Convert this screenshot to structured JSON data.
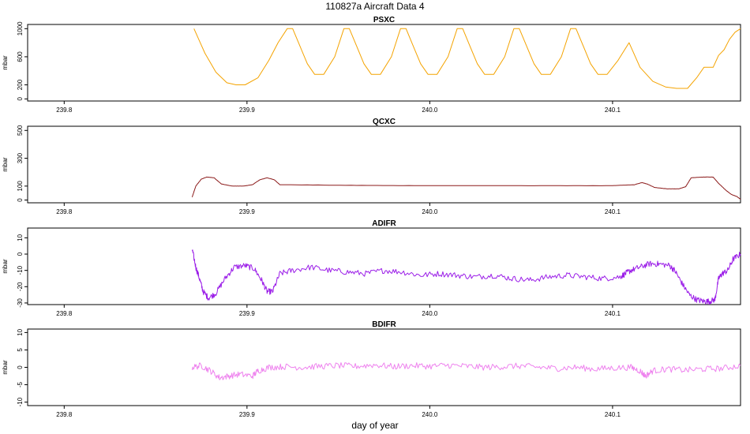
{
  "title": "110827a   Aircraft Data 4",
  "xlabel": "day of year",
  "chart_data": [
    {
      "type": "line",
      "title": "PSXC",
      "ylabel": "mbar",
      "color": "#f4a300",
      "xlim": [
        239.78,
        240.17
      ],
      "ylim": [
        -30,
        1060
      ],
      "xticks": [
        239.8,
        239.9,
        240.0,
        240.1
      ],
      "xtick_labels": [
        "239.8",
        "239.9",
        "240.0",
        "240.1"
      ],
      "yticks": [
        0,
        200,
        600,
        1000
      ],
      "ytick_labels": [
        "0",
        "200",
        "600",
        "1000"
      ],
      "series": [
        {
          "x": [
            239.871,
            239.877,
            239.883,
            239.889,
            239.894,
            239.899,
            239.906,
            239.912,
            239.917,
            239.922,
            239.925,
            239.929,
            239.933,
            239.937,
            239.942,
            239.948,
            239.953,
            239.956,
            239.96,
            239.964,
            239.968,
            239.973,
            239.979,
            239.984,
            239.987,
            239.991,
            239.995,
            239.999,
            240.004,
            240.01,
            240.015,
            240.018,
            240.022,
            240.026,
            240.03,
            240.035,
            240.041,
            240.046,
            240.049,
            240.053,
            240.057,
            240.061,
            240.066,
            240.072,
            240.077,
            240.08,
            240.084,
            240.088,
            240.092,
            240.097,
            240.103,
            240.109,
            240.115,
            240.122,
            240.129,
            240.135,
            240.141,
            240.146,
            240.15,
            240.155,
            240.158,
            240.161,
            240.164,
            240.167,
            240.17
          ],
          "y": [
            1000,
            650,
            380,
            230,
            200,
            200,
            300,
            550,
            800,
            1000,
            1000,
            750,
            500,
            350,
            350,
            600,
            1000,
            1000,
            750,
            500,
            350,
            350,
            600,
            1000,
            1000,
            750,
            500,
            350,
            350,
            600,
            1000,
            1000,
            750,
            500,
            350,
            350,
            600,
            1000,
            1000,
            750,
            500,
            350,
            350,
            600,
            1000,
            1000,
            750,
            500,
            350,
            350,
            550,
            800,
            450,
            250,
            170,
            150,
            150,
            300,
            450,
            450,
            620,
            700,
            850,
            950,
            1000
          ]
        }
      ]
    },
    {
      "type": "line",
      "title": "QCXC",
      "ylabel": "mbar",
      "color": "#8b1a1a",
      "xlim": [
        239.78,
        240.17
      ],
      "ylim": [
        -20,
        530
      ],
      "xticks": [
        239.8,
        239.9,
        240.0,
        240.1
      ],
      "xtick_labels": [
        "239.8",
        "239.9",
        "240.0",
        "240.1"
      ],
      "yticks": [
        0,
        100,
        300,
        500
      ],
      "ytick_labels": [
        "0",
        "100",
        "300",
        "500"
      ],
      "series": [
        {
          "x": [
            239.87,
            239.872,
            239.875,
            239.878,
            239.882,
            239.886,
            239.892,
            239.898,
            239.903,
            239.907,
            239.911,
            239.915,
            239.918,
            239.96,
            240.0,
            240.05,
            240.1,
            240.112,
            240.116,
            240.119,
            240.123,
            240.13,
            240.136,
            240.14,
            240.143,
            240.15,
            240.155,
            240.158,
            240.162,
            240.165,
            240.168,
            240.17
          ],
          "y": [
            20,
            100,
            150,
            165,
            160,
            115,
            100,
            100,
            110,
            145,
            160,
            145,
            110,
            105,
            103,
            103,
            103,
            110,
            125,
            115,
            90,
            80,
            80,
            95,
            160,
            165,
            165,
            120,
            70,
            40,
            25,
            5
          ]
        }
      ]
    },
    {
      "type": "line",
      "title": "ADIFR",
      "ylabel": "mbar",
      "color": "#9b1ee8",
      "xlim": [
        239.78,
        240.17
      ],
      "ylim": [
        -31,
        16
      ],
      "xticks": [
        239.8,
        239.9,
        240.0,
        240.1
      ],
      "xtick_labels": [
        "239.8",
        "239.9",
        "240.0",
        "240.1"
      ],
      "yticks": [
        -30,
        -20,
        -10,
        0,
        10
      ],
      "ytick_labels": [
        "-30",
        "-20",
        "-10",
        "0",
        "10"
      ],
      "series": [
        {
          "x": [
            239.87,
            239.872,
            239.874,
            239.876,
            239.879,
            239.883,
            239.888,
            239.893,
            239.899,
            239.904,
            239.908,
            239.911,
            239.914,
            239.918,
            239.925,
            239.935,
            239.945,
            239.955,
            239.965,
            239.975,
            239.985,
            239.995,
            240.005,
            240.015,
            240.025,
            240.035,
            240.045,
            240.055,
            240.065,
            240.075,
            240.085,
            240.095,
            240.104,
            240.107,
            240.11,
            240.115,
            240.12,
            240.125,
            240.131,
            240.134,
            240.138,
            240.142,
            240.146,
            240.15,
            240.153,
            240.156,
            240.158,
            240.16,
            240.163,
            240.166,
            240.17
          ],
          "y": [
            3,
            -8,
            -15,
            -23,
            -27,
            -24,
            -15,
            -8,
            -7,
            -9,
            -16,
            -23,
            -23,
            -12,
            -10,
            -8,
            -10,
            -11,
            -12,
            -10,
            -11,
            -13,
            -12,
            -13,
            -14,
            -13,
            -15,
            -16,
            -14,
            -13,
            -14,
            -15,
            -14,
            -12,
            -10,
            -8,
            -6,
            -6,
            -7,
            -10,
            -18,
            -25,
            -28,
            -29,
            -29,
            -28,
            -15,
            -12,
            -10,
            -3,
            0
          ]
        }
      ]
    },
    {
      "type": "line",
      "title": "BDIFR",
      "ylabel": "mbar",
      "color": "#ee82ee",
      "xlim": [
        239.78,
        240.17
      ],
      "ylim": [
        -11,
        11
      ],
      "xticks": [
        239.8,
        239.9,
        240.0,
        240.1
      ],
      "xtick_labels": [
        "239.8",
        "239.9",
        "240.0",
        "240.1"
      ],
      "yticks": [
        -10,
        -5,
        0,
        5,
        10
      ],
      "ytick_labels": [
        "-10",
        "-5",
        "0",
        "5",
        "10"
      ],
      "series": [
        {
          "x": [
            239.87,
            239.875,
            239.88,
            239.885,
            239.89,
            239.896,
            239.903,
            239.906,
            239.912,
            239.92,
            239.93,
            239.94,
            239.95,
            239.96,
            239.97,
            239.98,
            239.99,
            240.0,
            240.01,
            240.02,
            240.03,
            240.04,
            240.05,
            240.06,
            240.07,
            240.08,
            240.09,
            240.1,
            240.11,
            240.115,
            240.118,
            240.122,
            240.13,
            240.14,
            240.15,
            240.16,
            240.17
          ],
          "y": [
            0,
            0.5,
            -1,
            -3,
            -2.5,
            -2,
            -2.5,
            -1,
            0,
            0.2,
            0,
            0.3,
            0.5,
            0.3,
            0.7,
            0.2,
            0.5,
            0.3,
            0.6,
            0.3,
            0,
            0.2,
            0.4,
            0,
            -0.3,
            0,
            -0.5,
            -0.2,
            0,
            -1,
            -2.5,
            -1,
            -0.5,
            -0.8,
            -0.5,
            -0.3,
            0.5
          ]
        }
      ]
    }
  ]
}
